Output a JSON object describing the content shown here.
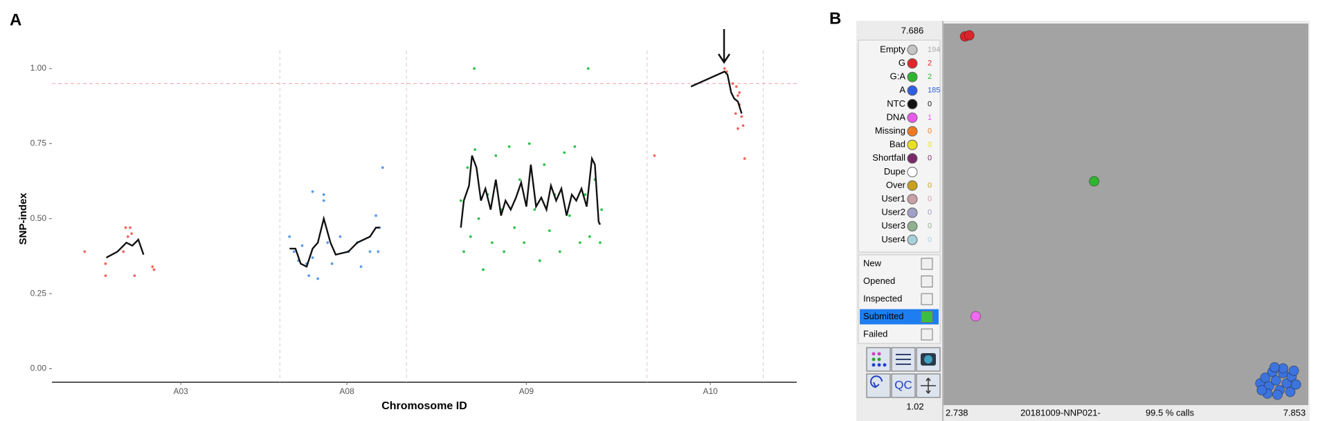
{
  "panel_labels": [
    "A",
    "B"
  ],
  "chart_data": [
    {
      "type": "scatter",
      "xlabel": "Chromosome ID",
      "ylabel": "SNP-index",
      "xlim": [
        0,
        100
      ],
      "ylim": [
        -0.045,
        1.06
      ],
      "xticks": [
        {
          "value": 17.3,
          "label": "A03"
        },
        {
          "value": 39.6,
          "label": "A08"
        },
        {
          "value": 63.7,
          "label": "A09"
        },
        {
          "value": 88.4,
          "label": "A10"
        }
      ],
      "yticks": [
        {
          "value": 0,
          "label": "0.00"
        },
        {
          "value": 0.25,
          "label": "0.25"
        },
        {
          "value": 0.5,
          "label": "0.50"
        },
        {
          "value": 0.75,
          "label": "0.75"
        },
        {
          "value": 1,
          "label": "1.00"
        }
      ],
      "separators": [
        30.6,
        47.6,
        79.9,
        95.5
      ],
      "separator_color": "#d9c8cc",
      "threshold": 0.95,
      "threshold_color": "#f4a0aa",
      "series": [
        {
          "kind": "points",
          "color": "#f0685a",
          "x": [
            4.4,
            7.2,
            7.2,
            9.9,
            10.5,
            10.7,
            10.2,
            11.1,
            13.5,
            13.7,
            9.6
          ],
          "values": [
            0.39,
            0.35,
            0.31,
            0.47,
            0.47,
            0.45,
            0.44,
            0.31,
            0.34,
            0.33,
            0.39
          ]
        },
        {
          "kind": "line",
          "color": "#111111",
          "x": [
            7.3,
            8.8,
            9.6,
            10.0,
            10.8,
            11.6,
            12.3
          ],
          "values": [
            0.37,
            0.39,
            0.41,
            0.42,
            0.41,
            0.43,
            0.38
          ]
        },
        {
          "kind": "points",
          "color": "#5a9be8",
          "x": [
            31.9,
            32.5,
            33.1,
            33.6,
            34.2,
            34.5,
            35.0,
            35.7,
            35.0,
            36.5,
            36.5,
            37.0,
            37.6,
            38.7,
            39.8,
            41.0,
            41.5,
            42.7,
            43.5,
            44.0,
            44.4,
            43.8
          ],
          "values": [
            0.44,
            0.39,
            0.36,
            0.41,
            0.35,
            0.31,
            0.37,
            0.3,
            0.59,
            0.56,
            0.58,
            0.42,
            0.35,
            0.44,
            0.39,
            0.42,
            0.34,
            0.39,
            0.51,
            0.47,
            0.67,
            0.39
          ]
        },
        {
          "kind": "line",
          "color": "#111111",
          "x": [
            31.9,
            32.7,
            33.4,
            34.2,
            35.0,
            35.7,
            36.5,
            37.4,
            38.1,
            39.8,
            41.0,
            42.7,
            43.5,
            44.0
          ],
          "values": [
            0.4,
            0.4,
            0.35,
            0.34,
            0.4,
            0.42,
            0.5,
            0.42,
            0.38,
            0.39,
            0.42,
            0.44,
            0.47,
            0.47
          ]
        },
        {
          "kind": "points",
          "color": "#2dc24a",
          "x": [
            56.7,
            72.0,
            54.9,
            55.3,
            55.8,
            56.2,
            56.8,
            57.3,
            57.9,
            58.5,
            59.1,
            59.6,
            60.3,
            60.7,
            61.4,
            62.1,
            62.8,
            63.4,
            64.1,
            64.8,
            65.5,
            66.1,
            66.8,
            67.5,
            68.2,
            68.8,
            69.5,
            70.2,
            70.9,
            71.6,
            72.2,
            72.9,
            73.6,
            73.8
          ],
          "values": [
            1.0,
            1.0,
            0.56,
            0.39,
            0.67,
            0.44,
            0.73,
            0.5,
            0.33,
            0.58,
            0.42,
            0.71,
            0.53,
            0.39,
            0.74,
            0.47,
            0.63,
            0.42,
            0.75,
            0.53,
            0.36,
            0.68,
            0.46,
            0.58,
            0.39,
            0.72,
            0.51,
            0.74,
            0.42,
            0.58,
            0.44,
            0.63,
            0.42,
            0.53
          ]
        },
        {
          "kind": "line",
          "color": "#111111",
          "x": [
            54.9,
            55.3,
            56.0,
            56.4,
            57.0,
            57.6,
            58.2,
            58.9,
            59.6,
            60.3,
            60.9,
            61.6,
            62.3,
            63.0,
            63.7,
            64.3,
            65.0,
            65.7,
            66.4,
            67.0,
            67.7,
            68.4,
            69.1,
            69.8,
            70.4,
            71.1,
            71.8,
            72.5,
            72.9,
            73.4,
            73.6
          ],
          "values": [
            0.47,
            0.56,
            0.61,
            0.71,
            0.67,
            0.56,
            0.6,
            0.53,
            0.63,
            0.51,
            0.56,
            0.53,
            0.57,
            0.62,
            0.54,
            0.68,
            0.54,
            0.57,
            0.53,
            0.61,
            0.56,
            0.6,
            0.51,
            0.58,
            0.56,
            0.6,
            0.54,
            0.7,
            0.68,
            0.49,
            0.48
          ]
        },
        {
          "kind": "points",
          "color": "#f0685a",
          "x": [
            80.9,
            90.3,
            90.6,
            91.4,
            91.9,
            92.1,
            92.3,
            91.8,
            92.6,
            92.1,
            92.8,
            93.0,
            92.3
          ],
          "values": [
            0.71,
            1.0,
            0.99,
            0.95,
            0.94,
            0.91,
            0.88,
            0.85,
            0.84,
            0.8,
            0.81,
            0.7,
            0.92
          ]
        },
        {
          "kind": "line",
          "color": "#111111",
          "x": [
            85.8,
            90.3,
            90.7,
            91.2,
            91.6,
            92.1,
            92.6
          ],
          "values": [
            0.94,
            0.99,
            0.98,
            0.92,
            0.9,
            0.89,
            0.85
          ]
        }
      ]
    },
    {
      "type": "scatter",
      "xlim": [
        2.738,
        7.853
      ],
      "ylim": [
        1.02,
        7.686
      ],
      "background": "#a3a3a3",
      "series": [
        {
          "color": "#d9262a",
          "x": [
            3.04,
            3.1
          ],
          "values": [
            7.46,
            7.48
          ]
        },
        {
          "color": "#2fb52f",
          "x": [
            4.85
          ],
          "values": [
            4.93
          ]
        },
        {
          "color": "#f06af0",
          "x": [
            3.19
          ],
          "values": [
            2.57
          ]
        },
        {
          "color": "#3d73dc",
          "x": [
            7.18,
            7.25,
            7.3,
            7.35,
            7.4,
            7.45,
            7.5,
            7.55,
            7.6,
            7.62,
            7.68,
            7.28,
            7.42,
            7.5,
            7.38,
            7.65,
            7.2
          ],
          "values": [
            1.4,
            1.5,
            1.35,
            1.6,
            1.45,
            1.28,
            1.58,
            1.4,
            1.25,
            1.52,
            1.38,
            1.22,
            1.2,
            1.66,
            1.68,
            1.62,
            1.28
          ]
        }
      ]
    }
  ],
  "viewer": {
    "legend": [
      {
        "label": "Empty",
        "count": 194,
        "color": "#c4c4c4"
      },
      {
        "label": "G",
        "count": 2,
        "color": "#e0262a"
      },
      {
        "label": "G:A",
        "count": 2,
        "color": "#2fb52f"
      },
      {
        "label": "A",
        "count": 185,
        "color": "#2f5ee0"
      },
      {
        "label": "NTC",
        "count": 0,
        "color": "#111111"
      },
      {
        "label": "DNA",
        "count": 1,
        "color": "#e85ae8"
      },
      {
        "label": "Missing",
        "count": 0,
        "color": "#f07a20"
      },
      {
        "label": "Bad",
        "count": 0,
        "color": "#e8e020"
      },
      {
        "label": "Shortfall",
        "count": 0,
        "color": "#7a2a6a"
      },
      {
        "label": "Dupe",
        "color": "#ffffff"
      },
      {
        "label": "Over",
        "count": 0,
        "color": "#c8a020"
      },
      {
        "label": "User1",
        "count": 0,
        "color": "#c8a0a8"
      },
      {
        "label": "User2",
        "count": 0,
        "color": "#a0a0c8"
      },
      {
        "label": "User3",
        "count": 0,
        "color": "#90b090"
      },
      {
        "label": "User4",
        "count": 0,
        "color": "#a8d0d8"
      }
    ],
    "statuses": [
      "New",
      "Opened",
      "Inspected",
      "Submitted",
      "Failed"
    ],
    "selected_status": 3,
    "qc_button": "QC",
    "plate": "20181009-NNP021-",
    "call_rate": "99.5 % calls"
  }
}
